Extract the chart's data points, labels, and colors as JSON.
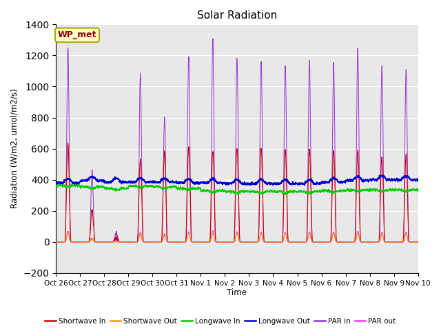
{
  "title": "Solar Radiation",
  "ylabel": "Radiation (W/m2, umol/m2/s)",
  "xlabel": "Time",
  "ylim": [
    -200,
    1400
  ],
  "yticks": [
    -200,
    0,
    200,
    400,
    600,
    800,
    1000,
    1200,
    1400
  ],
  "xlim": [
    0,
    15
  ],
  "xtick_labels": [
    "Oct 26",
    "Oct 27",
    "Oct 28",
    "Oct 29",
    "Oct 30",
    "Oct 31",
    "Nov 1",
    "Nov 2",
    "Nov 3",
    "Nov 4",
    "Nov 5",
    "Nov 6",
    "Nov 7",
    "Nov 8",
    "Nov 9",
    "Nov 10"
  ],
  "station_label": "WP_met",
  "background_color": "#e8e8e8",
  "legend": [
    {
      "label": "Shortwave In",
      "color": "#cc0000"
    },
    {
      "label": "Shortwave Out",
      "color": "#ff9900"
    },
    {
      "label": "Longwave In",
      "color": "#00cc00"
    },
    {
      "label": "Longwave Out",
      "color": "#0000cc"
    },
    {
      "label": "PAR in",
      "color": "#9933cc"
    },
    {
      "label": "PAR out",
      "color": "#ff33ff"
    }
  ],
  "sw_in_peaks": [
    630,
    200,
    20,
    530,
    580,
    610,
    590,
    600,
    610,
    590,
    600,
    590,
    580,
    550,
    560
  ],
  "par_in_peaks": [
    1250,
    460,
    50,
    1080,
    800,
    1190,
    1300,
    1180,
    1170,
    1130,
    1160,
    1150,
    1240,
    1130,
    1100
  ],
  "lw_in_base": [
    365,
    355,
    345,
    360,
    355,
    345,
    330,
    325,
    325,
    325,
    325,
    330,
    335,
    335,
    335
  ],
  "lw_out_base": [
    380,
    395,
    385,
    385,
    385,
    380,
    380,
    375,
    375,
    375,
    375,
    385,
    395,
    400,
    400
  ],
  "n_days": 15,
  "n_per_day": 144
}
